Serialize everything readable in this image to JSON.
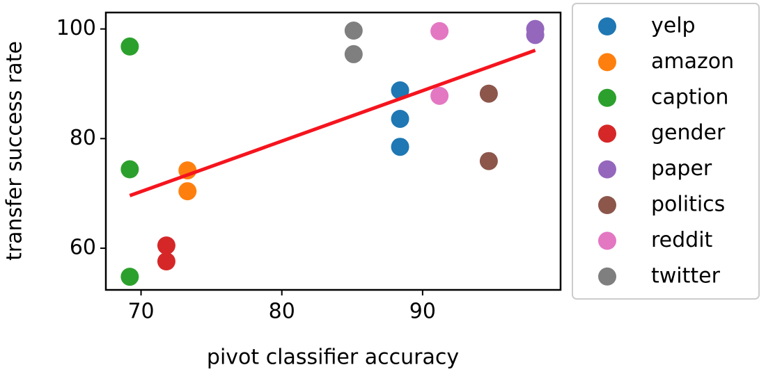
{
  "chart_data": {
    "type": "scatter",
    "xlabel": "pivot classifier accuracy",
    "ylabel": "transfer success rate",
    "xlim": [
      67.5,
      99.8
    ],
    "xticks": [
      70,
      80,
      90
    ],
    "ylim": [
      52.4,
      103
    ],
    "yticks": [
      60,
      80,
      100
    ],
    "legend": "outside-right",
    "series": [
      {
        "name": "yelp",
        "color": "#1f77b4",
        "x": [
          88.4,
          88.4,
          88.4
        ],
        "values": [
          88.8,
          83.6,
          78.5
        ]
      },
      {
        "name": "amazon",
        "color": "#ff7f0e",
        "x": [
          73.3,
          73.3
        ],
        "values": [
          74.2,
          70.4
        ]
      },
      {
        "name": "caption",
        "color": "#2ca02c",
        "x": [
          69.2,
          69.2,
          69.2
        ],
        "values": [
          96.8,
          74.4,
          54.8
        ]
      },
      {
        "name": "gender",
        "color": "#d62728",
        "x": [
          71.8,
          71.8
        ],
        "values": [
          60.5,
          57.6
        ]
      },
      {
        "name": "paper",
        "color": "#9467bd",
        "x": [
          98.0,
          98.0
        ],
        "values": [
          100.0,
          98.9
        ]
      },
      {
        "name": "politics",
        "color": "#8c564b",
        "x": [
          94.7,
          94.7
        ],
        "values": [
          88.2,
          75.9
        ]
      },
      {
        "name": "reddit",
        "color": "#e377c2",
        "x": [
          91.2,
          91.2
        ],
        "values": [
          99.6,
          87.8
        ]
      },
      {
        "name": "twitter",
        "color": "#7f7f7f",
        "x": [
          85.1,
          85.1
        ],
        "values": [
          99.7,
          95.4
        ]
      }
    ],
    "trend_line": {
      "color": "#f5141e",
      "x": [
        69.2,
        98.0
      ],
      "values": [
        69.6,
        96.1
      ]
    }
  }
}
